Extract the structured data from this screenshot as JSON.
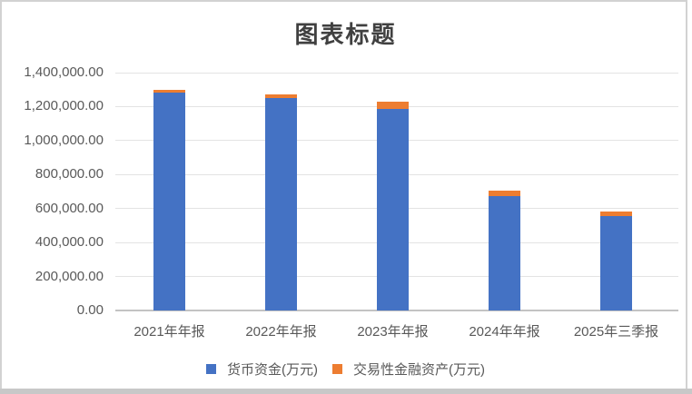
{
  "chart": {
    "frame_color": "#d2d2d2",
    "bottom_bar_color": "#c8c8c8",
    "title_color": "#404040",
    "axis_text_color": "#595959",
    "gridline_color": "#e3e3e3",
    "axis_line_color": "#c3c3c3"
  },
  "chart_data": {
    "type": "bar",
    "stacked": true,
    "title": "图表标题",
    "categories": [
      "2021年年报",
      "2022年年报",
      "2023年年报",
      "2024年年报",
      "2025年三季报"
    ],
    "series": [
      {
        "name": "货币资金(万元)",
        "color": "#4472C4",
        "values": [
          1280000,
          1250000,
          1185000,
          675000,
          555000
        ]
      },
      {
        "name": "交易性金融资产(万元)",
        "color": "#ED7D31",
        "values": [
          20000,
          20000,
          42000,
          30000,
          25000
        ]
      }
    ],
    "xlabel": "",
    "ylabel": "",
    "ylim": [
      0,
      1400000
    ],
    "ytick_step": 200000,
    "ytick_labels": [
      "0.00",
      "200,000.00",
      "400,000.00",
      "600,000.00",
      "800,000.00",
      "1,000,000.00",
      "1,200,000.00",
      "1,400,000.00"
    ],
    "grid": true,
    "legend_position": "bottom"
  }
}
